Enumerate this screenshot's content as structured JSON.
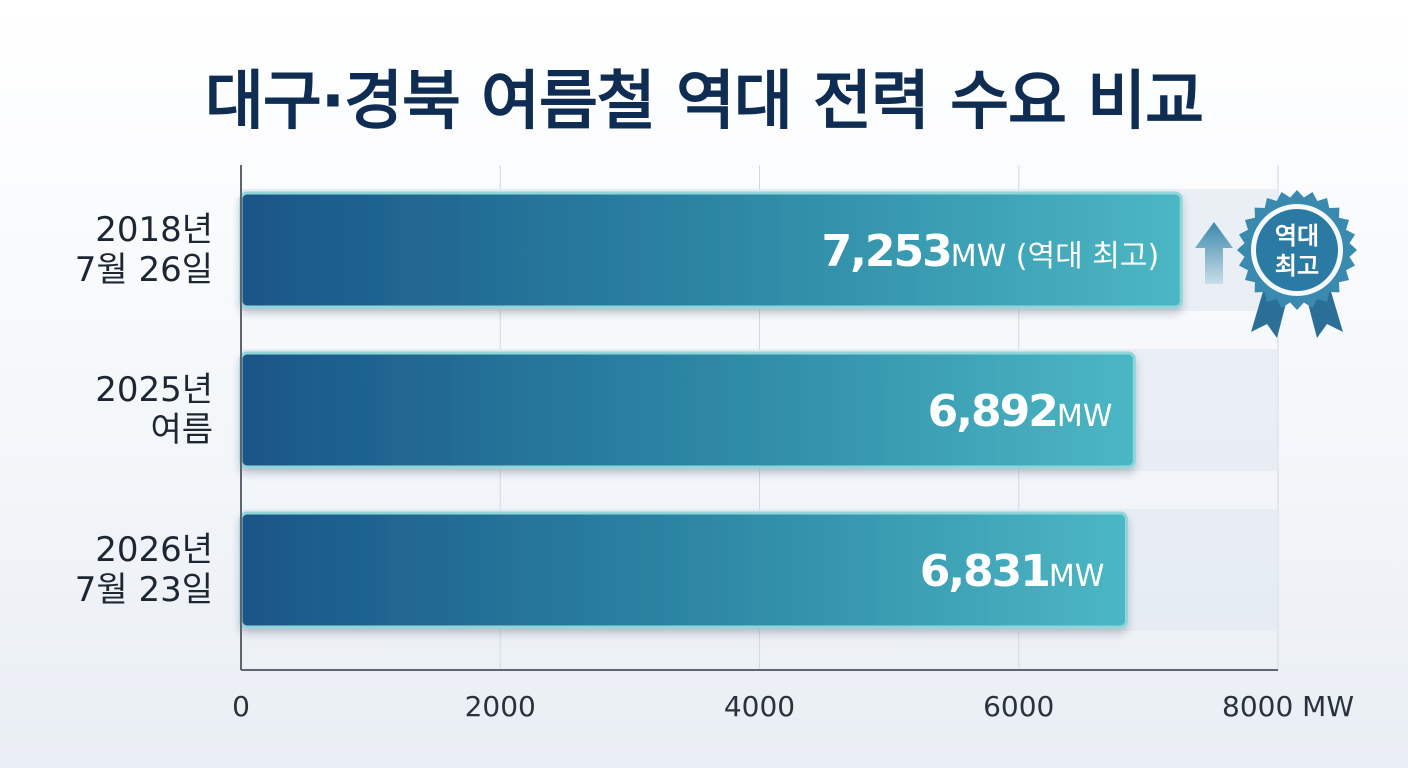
{
  "chart_data": {
    "type": "bar",
    "orientation": "horizontal",
    "title": "대구·경북 여름철 역대 전력 수요 비교",
    "categories": [
      [
        "2018년",
        "7월 26일"
      ],
      [
        "2025년",
        "여름"
      ],
      [
        "2026년",
        "7월 23일"
      ]
    ],
    "values": [
      7253,
      6892,
      6831
    ],
    "value_labels": [
      {
        "number": "7,253",
        "unit": "MW",
        "suffix": " (역대 최고)"
      },
      {
        "number": "6,892",
        "unit": "MW",
        "suffix": ""
      },
      {
        "number": "6,831",
        "unit": "MW",
        "suffix": ""
      }
    ],
    "xlim": [
      0,
      8000
    ],
    "x_ticks": [
      0,
      2000,
      4000,
      6000,
      8000
    ],
    "x_tick_labels": [
      "0",
      "2000",
      "4000",
      "6000",
      "8000 MW"
    ],
    "grid": true,
    "badge": {
      "line1": "역대",
      "line2": "최고"
    },
    "colors": {
      "bar_dark": "#1a5588",
      "bar_mid": "#2e8aa6",
      "bar_light": "#4cb7c4",
      "bar_edge": "#8fd6da",
      "track": "#e3e9f1",
      "title": "#0f2d52",
      "badge": "#3a8ab0"
    }
  }
}
